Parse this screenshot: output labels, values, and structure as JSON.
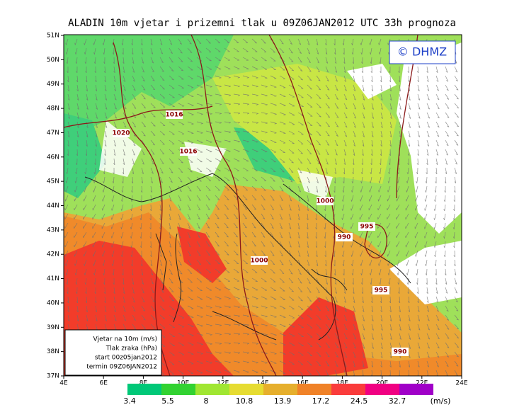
{
  "title": "ALADIN 10m vjetar i prizemni tlak u 09Z06JAN2012 UTC 33h prognoza",
  "logo": "© DHMZ",
  "lat_labels": [
    "51N",
    "50N",
    "49N",
    "48N",
    "47N",
    "46N",
    "45N",
    "44N",
    "43N",
    "42N",
    "41N",
    "40N",
    "39N",
    "38N",
    "37N"
  ],
  "lon_labels": [
    "4E",
    "6E",
    "8E",
    "10E",
    "12E",
    "14E",
    "16E",
    "18E",
    "20E",
    "22E",
    "24E"
  ],
  "isobar_labels": [
    "1016",
    "1020",
    "1016",
    "1000",
    "995",
    "990",
    "1000",
    "995",
    "990"
  ],
  "legend_box": [
    "Vjetar na 10m (m/s)",
    "Tlak zraka (hPa)",
    "start 00z05jan2012",
    "termin 09Z06JAN2012"
  ],
  "colorbar": {
    "labels": [
      "3.4",
      "5.5",
      "8",
      "10.8",
      "13.9",
      "17.2",
      "24.5",
      "32.7"
    ],
    "unit": "(m/s)"
  }
}
